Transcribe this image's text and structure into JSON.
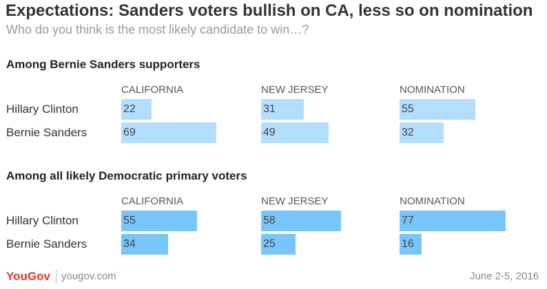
{
  "title": "Expectations: Sanders voters bullish on CA, less so on nomination",
  "subtitle": "Who do you think is the most likely candidate to win…?",
  "footer": {
    "logo": "YouGov",
    "site": "yougov.com",
    "date": "June 2-5, 2016"
  },
  "chart_data": [
    {
      "type": "bar",
      "title": "Among Bernie Sanders supporters",
      "categories": [
        "CALIFORNIA",
        "NEW JERSEY",
        "NOMINATION"
      ],
      "series": [
        {
          "name": "Hillary Clinton",
          "values": [
            22,
            31,
            55
          ]
        },
        {
          "name": "Bernie Sanders",
          "values": [
            69,
            49,
            32
          ]
        }
      ],
      "bar_color": "#b3deff",
      "xlim": [
        0,
        100
      ]
    },
    {
      "type": "bar",
      "title": "Among all likely Democratic primary voters",
      "categories": [
        "CALIFORNIA",
        "NEW JERSEY",
        "NOMINATION"
      ],
      "series": [
        {
          "name": "Hillary Clinton",
          "values": [
            55,
            58,
            77
          ]
        },
        {
          "name": "Bernie Sanders",
          "values": [
            34,
            25,
            16
          ]
        }
      ],
      "bar_color": "#78c5fb",
      "xlim": [
        0,
        100
      ]
    }
  ]
}
